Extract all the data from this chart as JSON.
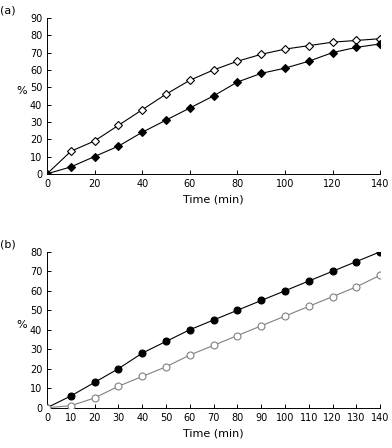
{
  "panel_a": {
    "label": "(a)",
    "x": [
      0,
      10,
      20,
      30,
      40,
      50,
      60,
      70,
      80,
      90,
      100,
      110,
      120,
      130,
      140
    ],
    "deaerated_y": [
      0,
      13,
      19,
      28,
      37,
      46,
      54,
      60,
      65,
      69,
      72,
      74,
      76,
      77,
      78
    ],
    "aerated_y": [
      0,
      4,
      10,
      16,
      24,
      31,
      38,
      45,
      53,
      58,
      61,
      65,
      70,
      73,
      75
    ],
    "xlabel": "Time (min)",
    "ylabel": "%",
    "xlim": [
      0,
      140
    ],
    "ylim": [
      0,
      90
    ],
    "yticks": [
      0,
      10,
      20,
      30,
      40,
      50,
      60,
      70,
      80,
      90
    ],
    "xticks": [
      0,
      20,
      40,
      60,
      80,
      100,
      120,
      140
    ]
  },
  "panel_b": {
    "label": "(b)",
    "x": [
      0,
      10,
      20,
      30,
      40,
      50,
      60,
      70,
      80,
      90,
      100,
      110,
      120,
      130,
      140
    ],
    "aerated_y": [
      0,
      6,
      13,
      20,
      28,
      34,
      40,
      45,
      50,
      55,
      60,
      65,
      70,
      75,
      80
    ],
    "deaerated_y": [
      0,
      1,
      5,
      11,
      16,
      21,
      27,
      32,
      37,
      42,
      47,
      52,
      57,
      62,
      68
    ],
    "xlabel": "Time (min)",
    "ylabel": "%",
    "xlim": [
      0,
      140
    ],
    "ylim": [
      0,
      80
    ],
    "yticks": [
      0,
      10,
      20,
      30,
      40,
      50,
      60,
      70,
      80
    ],
    "xticks": [
      0,
      10,
      20,
      30,
      40,
      50,
      60,
      70,
      80,
      90,
      100,
      110,
      120,
      130,
      140
    ]
  },
  "line_color_black": "#000000",
  "line_color_gray": "#808080",
  "marker_size_a": 4,
  "marker_size_b": 5,
  "linewidth": 0.8,
  "font_size": 7,
  "label_font_size": 8,
  "tick_labelsize": 7
}
